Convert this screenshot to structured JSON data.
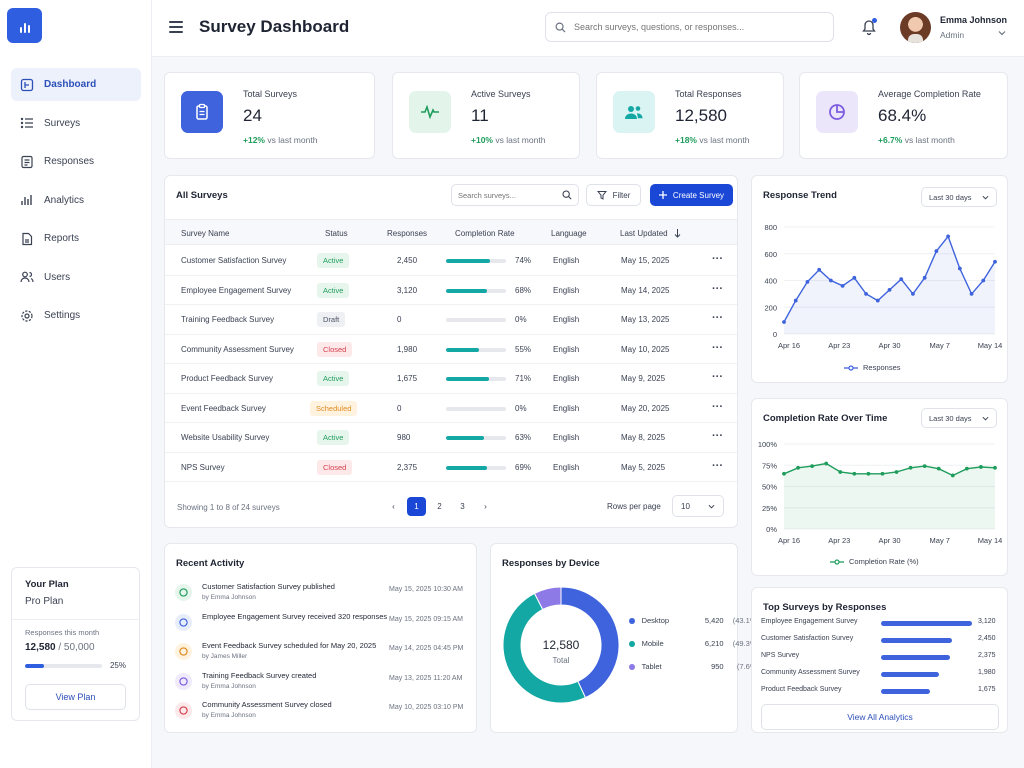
{
  "header": {
    "title": "Survey Dashboard",
    "search_placeholder": "Search surveys, questions, or responses...",
    "user_name": "Emma Johnson",
    "user_role": "Admin"
  },
  "sidebar": {
    "items": [
      {
        "label": "Dashboard",
        "icon": "dashboard-icon"
      },
      {
        "label": "Surveys",
        "icon": "list-icon"
      },
      {
        "label": "Responses",
        "icon": "document-icon"
      },
      {
        "label": "Analytics",
        "icon": "bar-chart-icon"
      },
      {
        "label": "Reports",
        "icon": "report-icon"
      },
      {
        "label": "Users",
        "icon": "users-icon"
      },
      {
        "label": "Settings",
        "icon": "gear-icon"
      }
    ],
    "plan": {
      "title": "Your Plan",
      "name": "Pro Plan",
      "responses_label": "Responses this month",
      "used": "12,580",
      "limit": "/ 50,000",
      "percent_label": "25%",
      "percent": 25,
      "button": "View Plan"
    }
  },
  "stats": [
    {
      "label": "Total Surveys",
      "value": "24",
      "change": "+12%",
      "change_text": "vs last month",
      "icon": "clipboard-icon",
      "color": "#3e63dd"
    },
    {
      "label": "Active Surveys",
      "value": "11",
      "change": "+10%",
      "change_text": "vs last month",
      "icon": "pulse-icon",
      "color": "#1f9d5c"
    },
    {
      "label": "Total Responses",
      "value": "12,580",
      "change": "+18%",
      "change_text": "vs last month",
      "icon": "users-icon",
      "color": "#14a8a4"
    },
    {
      "label": "Average Completion Rate",
      "value": "68.4%",
      "change": "+6.7%",
      "change_text": "vs last month",
      "icon": "pie-icon",
      "color": "#7c5ce0"
    }
  ],
  "surveys": {
    "title": "All Surveys",
    "search_placeholder": "Search surveys...",
    "filter_label": "Filter",
    "create_label": "Create Survey",
    "columns": [
      "Survey Name",
      "Status",
      "Responses",
      "Completion Rate",
      "Language",
      "Last Updated"
    ],
    "rows": [
      {
        "name": "Customer Satisfaction Survey",
        "status": "Active",
        "status_key": "active",
        "responses": "2,450",
        "rate": 74,
        "rate_label": "74%",
        "language": "English",
        "updated": "May 15, 2025"
      },
      {
        "name": "Employee Engagement Survey",
        "status": "Active",
        "status_key": "active",
        "responses": "3,120",
        "rate": 68,
        "rate_label": "68%",
        "language": "English",
        "updated": "May 14, 2025"
      },
      {
        "name": "Training Feedback Survey",
        "status": "Draft",
        "status_key": "draft",
        "responses": "0",
        "rate": 0,
        "rate_label": "0%",
        "language": "English",
        "updated": "May 13, 2025"
      },
      {
        "name": "Community Assessment Survey",
        "status": "Closed",
        "status_key": "closed",
        "responses": "1,980",
        "rate": 55,
        "rate_label": "55%",
        "language": "English",
        "updated": "May 10, 2025"
      },
      {
        "name": "Product Feedback Survey",
        "status": "Active",
        "status_key": "active",
        "responses": "1,675",
        "rate": 71,
        "rate_label": "71%",
        "language": "English",
        "updated": "May 9, 2025"
      },
      {
        "name": "Event Feedback Survey",
        "status": "Scheduled",
        "status_key": "scheduled",
        "responses": "0",
        "rate": 0,
        "rate_label": "0%",
        "language": "English",
        "updated": "May 20, 2025"
      },
      {
        "name": "Website Usability Survey",
        "status": "Active",
        "status_key": "active",
        "responses": "980",
        "rate": 63,
        "rate_label": "63%",
        "language": "English",
        "updated": "May 8, 2025"
      },
      {
        "name": "NPS Survey",
        "status": "Closed",
        "status_key": "closed",
        "responses": "2,375",
        "rate": 69,
        "rate_label": "69%",
        "language": "English",
        "updated": "May 5, 2025"
      }
    ],
    "footer_text": "Showing 1 to 8 of 24 surveys",
    "pages": [
      "1",
      "2",
      "3"
    ],
    "rows_per_page_label": "Rows per page",
    "rows_per_page": "10"
  },
  "response_trend": {
    "title": "Response Trend",
    "range": "Last 30 days",
    "legend": "Responses"
  },
  "completion_over_time": {
    "title": "Completion Rate Over Time",
    "range": "Last 30 days",
    "legend": "Completion Rate (%)"
  },
  "chart_data": [
    {
      "type": "line",
      "x_ticks": [
        "Apr 16",
        "Apr 23",
        "Apr 30",
        "May 7",
        "May 14"
      ],
      "y_ticks": [
        0,
        200,
        400,
        600,
        800
      ],
      "ylim": [
        0,
        800
      ],
      "series": [
        {
          "name": "Responses",
          "values": [
            90,
            250,
            390,
            480,
            400,
            360,
            420,
            300,
            250,
            330,
            410,
            300,
            420,
            620,
            730,
            490,
            300,
            400,
            540
          ]
        }
      ],
      "color": "#3e63dd"
    },
    {
      "type": "line",
      "x_ticks": [
        "Apr 16",
        "Apr 23",
        "Apr 30",
        "May 7",
        "May 14"
      ],
      "y_ticks": [
        "0%",
        "25%",
        "50%",
        "75%",
        "100%"
      ],
      "ylim": [
        0,
        100
      ],
      "series": [
        {
          "name": "Completion Rate (%)",
          "values": [
            65,
            72,
            74,
            77,
            67,
            65,
            65,
            65,
            67,
            72,
            74,
            71,
            63,
            71,
            73,
            72
          ]
        }
      ],
      "color": "#1f9d5c"
    },
    {
      "type": "pie",
      "title": "Responses by Device",
      "categories": [
        "Desktop",
        "Mobile",
        "Tablet"
      ],
      "values": [
        5420,
        6210,
        950
      ],
      "labels": [
        "5,420",
        "6,210",
        "950"
      ],
      "percents": [
        "(43.1%)",
        "(49.3%)",
        "(7.6%)"
      ],
      "colors": [
        "#3e63dd",
        "#14a8a4",
        "#8e7ae6"
      ],
      "center_value": "12,580",
      "center_label": "Total"
    },
    {
      "type": "bar",
      "title": "Top Surveys by Responses",
      "categories": [
        "Employee Engagement Survey",
        "Customer Satisfaction Survey",
        "NPS Survey",
        "Community Assessment Survey",
        "Product Feedback Survey"
      ],
      "values": [
        3120,
        2450,
        2375,
        1980,
        1675
      ],
      "labels": [
        "3,120",
        "2,450",
        "2,375",
        "1,980",
        "1,675"
      ]
    }
  ],
  "activity": {
    "title": "Recent Activity",
    "items": [
      {
        "title": "Customer Satisfaction Survey published",
        "by": "by Emma Johnson",
        "time": "May 15, 2025  10:30 AM",
        "icon": "check-circle-icon",
        "color": "#1f9d5c",
        "bg": "#e7f6ed"
      },
      {
        "title": "Employee Engagement Survey received 320 responses",
        "by": "",
        "time": "May 15, 2025  09:15 AM",
        "icon": "users-icon",
        "color": "#3e63dd",
        "bg": "#e8edfc"
      },
      {
        "title": "Event Feedback Survey scheduled for May 20, 2025",
        "by": "by James Miller",
        "time": "May 14, 2025  04:45 PM",
        "icon": "calendar-icon",
        "color": "#e08a1e",
        "bg": "#fff3e0"
      },
      {
        "title": "Training Feedback Survey created",
        "by": "by Emma Johnson",
        "time": "May 13, 2025  11:20 AM",
        "icon": "pulse-icon",
        "color": "#7c5ce0",
        "bg": "#efeafc"
      },
      {
        "title": "Community Assessment Survey closed",
        "by": "by Emma Johnson",
        "time": "May 10, 2025  03:10 PM",
        "icon": "x-circle-icon",
        "color": "#d6404e",
        "bg": "#fde8ea"
      }
    ]
  },
  "device": {
    "title": "Responses by Device"
  },
  "top_surveys": {
    "title": "Top Surveys by Responses",
    "button": "View All Analytics"
  }
}
